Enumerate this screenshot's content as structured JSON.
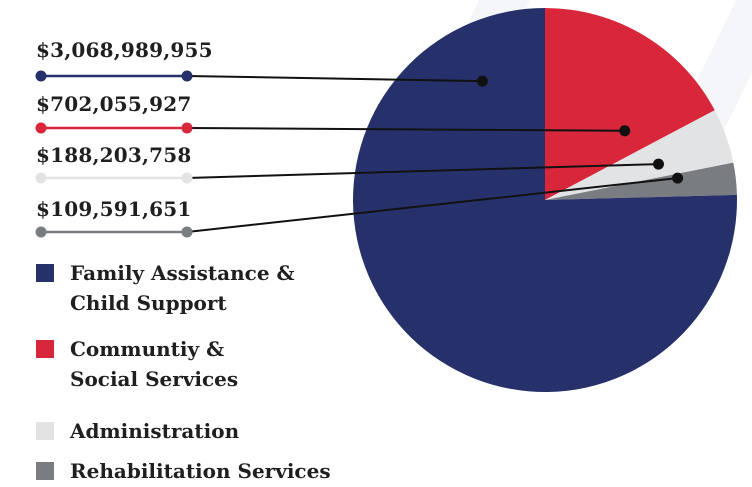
{
  "chart_data": {
    "type": "pie",
    "title": "",
    "slices": [
      {
        "label": "Family Assistance &\nChild Support",
        "value": 3068989955,
        "display": "$3,068,989,955",
        "color": "#26316b"
      },
      {
        "label": "Communtiy &\nSocial Services",
        "value": 702055927,
        "display": "$702,055,927",
        "color": "#d8273a"
      },
      {
        "label": "Administration",
        "value": 188203758,
        "display": "$188,203,758",
        "color": "#e2e3e5"
      },
      {
        "label": "Rehabilitation Services",
        "value": 109591651,
        "display": "$109,591,651",
        "color": "#797c80"
      }
    ],
    "legend_position": "bottom-left",
    "leader_line_color": "#111111"
  }
}
